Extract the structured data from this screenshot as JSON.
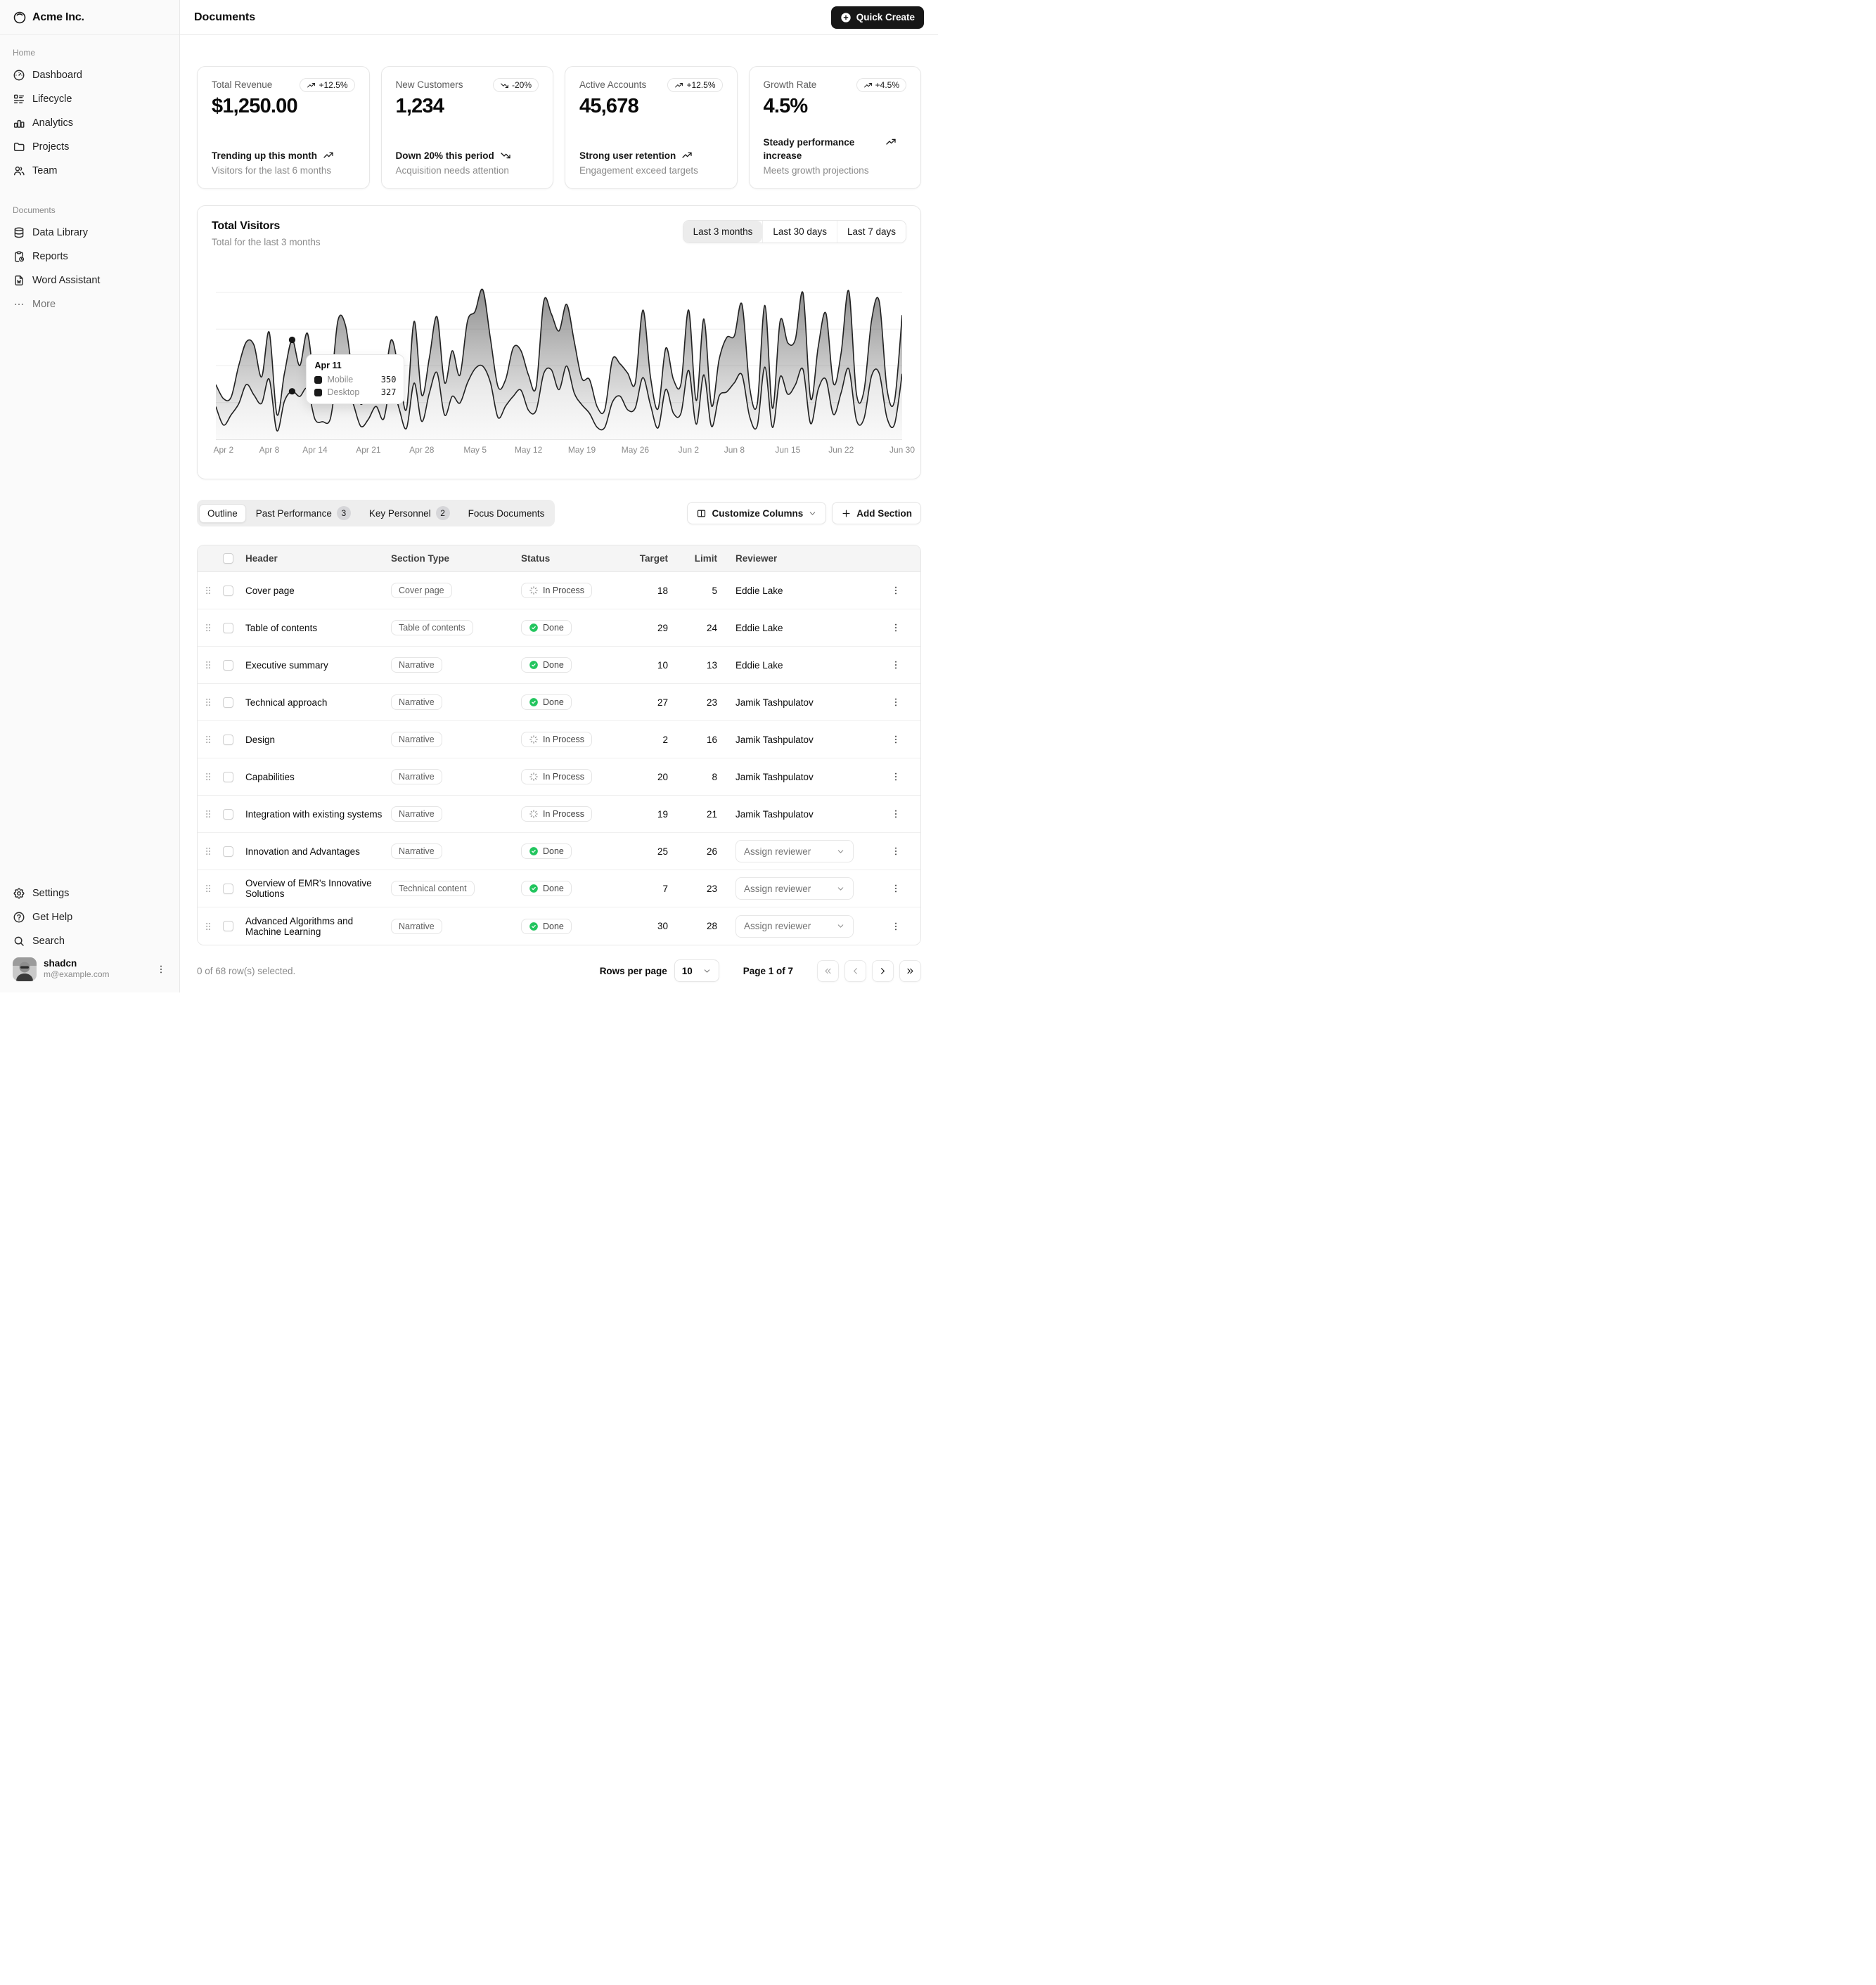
{
  "sidebar": {
    "brand": {
      "name": "Acme Inc.",
      "icon": "logo"
    },
    "groups": [
      {
        "label": "Home",
        "items": [
          {
            "label": "Dashboard",
            "icon": "dashboard"
          },
          {
            "label": "Lifecycle",
            "icon": "list-details"
          },
          {
            "label": "Analytics",
            "icon": "chart-bar"
          },
          {
            "label": "Projects",
            "icon": "folder"
          },
          {
            "label": "Team",
            "icon": "users"
          }
        ]
      },
      {
        "label": "Documents",
        "items": [
          {
            "label": "Data Library",
            "icon": "database"
          },
          {
            "label": "Reports",
            "icon": "report"
          },
          {
            "label": "Word Assistant",
            "icon": "file-word"
          },
          {
            "label": "More",
            "icon": "dots",
            "muted": true
          }
        ]
      }
    ],
    "footer_items": [
      {
        "label": "Settings",
        "icon": "settings"
      },
      {
        "label": "Get Help",
        "icon": "help"
      },
      {
        "label": "Search",
        "icon": "search"
      }
    ],
    "user": {
      "name": "shadcn",
      "email": "m@example.com"
    }
  },
  "header": {
    "title": "Documents",
    "quick_create": "Quick Create"
  },
  "stat_cards": [
    {
      "title": "Total Revenue",
      "badge": "+12.5%",
      "trend": "up",
      "value": "$1,250.00",
      "line1": "Trending up this month",
      "line2": "Visitors for the last 6 months"
    },
    {
      "title": "New Customers",
      "badge": "-20%",
      "trend": "down",
      "value": "1,234",
      "line1": "Down 20% this period",
      "line2": "Acquisition needs attention"
    },
    {
      "title": "Active Accounts",
      "badge": "+12.5%",
      "trend": "up",
      "value": "45,678",
      "line1": "Strong user retention",
      "line2": "Engagement exceed targets"
    },
    {
      "title": "Growth Rate",
      "badge": "+4.5%",
      "trend": "up",
      "value": "4.5%",
      "line1": "Steady performance increase",
      "line2": "Meets growth projections"
    }
  ],
  "chart": {
    "title": "Total Visitors",
    "subtitle": "Total for the last 3 months",
    "range_options": [
      "Last 3 months",
      "Last 30 days",
      "Last 7 days"
    ],
    "active_range": "Last 3 months",
    "tooltip": {
      "title": "Apr 11",
      "rows": [
        {
          "label": "Mobile",
          "value": "350"
        },
        {
          "label": "Desktop",
          "value": "327"
        }
      ]
    }
  },
  "chart_data": {
    "type": "area",
    "stacked": true,
    "title": "Total Visitors",
    "x_start": "2024-04-01",
    "x_end": "2024-06-30",
    "ylim": [
      0,
      1050
    ],
    "gridlines": [
      250,
      500,
      750,
      1000
    ],
    "x_ticks": [
      {
        "label": "Apr 2",
        "index": 1
      },
      {
        "label": "Apr 8",
        "index": 7
      },
      {
        "label": "Apr 14",
        "index": 13
      },
      {
        "label": "Apr 21",
        "index": 20
      },
      {
        "label": "Apr 28",
        "index": 27
      },
      {
        "label": "May 5",
        "index": 34
      },
      {
        "label": "May 12",
        "index": 41
      },
      {
        "label": "May 19",
        "index": 48
      },
      {
        "label": "May 26",
        "index": 55
      },
      {
        "label": "Jun 2",
        "index": 62
      },
      {
        "label": "Jun 8",
        "index": 68
      },
      {
        "label": "Jun 15",
        "index": 75
      },
      {
        "label": "Jun 22",
        "index": 82
      },
      {
        "label": "Jun 30",
        "index": 90
      }
    ],
    "series": [
      {
        "name": "Desktop",
        "values": [
          222,
          97,
          167,
          242,
          373,
          301,
          245,
          409,
          59,
          261,
          327,
          292,
          342,
          137,
          120,
          138,
          446,
          364,
          243,
          89,
          137,
          224,
          138,
          387,
          215,
          75,
          383,
          122,
          315,
          454,
          165,
          293,
          247,
          385,
          481,
          498,
          388,
          149,
          227,
          293,
          335,
          197,
          197,
          448,
          473,
          338,
          499,
          315,
          235,
          177,
          82,
          81,
          252,
          294,
          201,
          213,
          420,
          233,
          78,
          340,
          178,
          178,
          470,
          103,
          439,
          88,
          294,
          323,
          385,
          438,
          155,
          92,
          492,
          81,
          426,
          307,
          371,
          475,
          107,
          341,
          408,
          169,
          317,
          480,
          132,
          141,
          434,
          448,
          149,
          103,
          446
        ]
      },
      {
        "name": "Mobile",
        "values": [
          150,
          180,
          120,
          260,
          290,
          340,
          180,
          320,
          110,
          190,
          350,
          210,
          380,
          220,
          170,
          190,
          360,
          410,
          180,
          150,
          200,
          170,
          230,
          290,
          250,
          130,
          420,
          180,
          240,
          380,
          220,
          310,
          190,
          420,
          390,
          520,
          300,
          210,
          180,
          330,
          270,
          240,
          160,
          490,
          380,
          400,
          420,
          350,
          180,
          230,
          140,
          120,
          290,
          220,
          250,
          170,
          460,
          190,
          130,
          280,
          230,
          200,
          410,
          160,
          380,
          140,
          250,
          370,
          320,
          480,
          200,
          150,
          420,
          130,
          380,
          350,
          310,
          520,
          170,
          290,
          450,
          210,
          270,
          530,
          180,
          190,
          380,
          490,
          200,
          160,
          400
        ]
      }
    ],
    "highlight": {
      "index": 10,
      "date_label": "Apr 11",
      "mobile": 350,
      "desktop": 327
    }
  },
  "tabs": {
    "items": [
      {
        "label": "Outline",
        "active": true
      },
      {
        "label": "Past Performance",
        "badge": "3"
      },
      {
        "label": "Key Personnel",
        "badge": "2"
      },
      {
        "label": "Focus Documents"
      }
    ],
    "customize_columns": "Customize Columns",
    "add_section": "Add Section"
  },
  "table": {
    "columns": [
      "Header",
      "Section Type",
      "Status",
      "Target",
      "Limit",
      "Reviewer"
    ],
    "assign_placeholder": "Assign reviewer",
    "rows": [
      {
        "header": "Cover page",
        "type": "Cover page",
        "status": "In Process",
        "target": "18",
        "limit": "5",
        "reviewer": "Eddie Lake"
      },
      {
        "header": "Table of contents",
        "type": "Table of contents",
        "status": "Done",
        "target": "29",
        "limit": "24",
        "reviewer": "Eddie Lake"
      },
      {
        "header": "Executive summary",
        "type": "Narrative",
        "status": "Done",
        "target": "10",
        "limit": "13",
        "reviewer": "Eddie Lake"
      },
      {
        "header": "Technical approach",
        "type": "Narrative",
        "status": "Done",
        "target": "27",
        "limit": "23",
        "reviewer": "Jamik Tashpulatov"
      },
      {
        "header": "Design",
        "type": "Narrative",
        "status": "In Process",
        "target": "2",
        "limit": "16",
        "reviewer": "Jamik Tashpulatov"
      },
      {
        "header": "Capabilities",
        "type": "Narrative",
        "status": "In Process",
        "target": "20",
        "limit": "8",
        "reviewer": "Jamik Tashpulatov"
      },
      {
        "header": "Integration with existing systems",
        "type": "Narrative",
        "status": "In Process",
        "target": "19",
        "limit": "21",
        "reviewer": "Jamik Tashpulatov"
      },
      {
        "header": "Innovation and Advantages",
        "type": "Narrative",
        "status": "Done",
        "target": "25",
        "limit": "26",
        "reviewer": null
      },
      {
        "header": "Overview of EMR's Innovative Solutions",
        "type": "Technical content",
        "status": "Done",
        "target": "7",
        "limit": "23",
        "reviewer": null
      },
      {
        "header": "Advanced Algorithms and Machine Learning",
        "type": "Narrative",
        "status": "Done",
        "target": "30",
        "limit": "28",
        "reviewer": null
      }
    ]
  },
  "footer": {
    "selected": "0 of 68 row(s) selected.",
    "rows_per_page_label": "Rows per page",
    "rows_per_page": "10",
    "page_info": "Page 1 of 7"
  },
  "colors": {
    "accent_green": "#22c55e",
    "primary": "#171717",
    "border": "#e7e7e7",
    "muted_text": "#8b8b8b"
  }
}
